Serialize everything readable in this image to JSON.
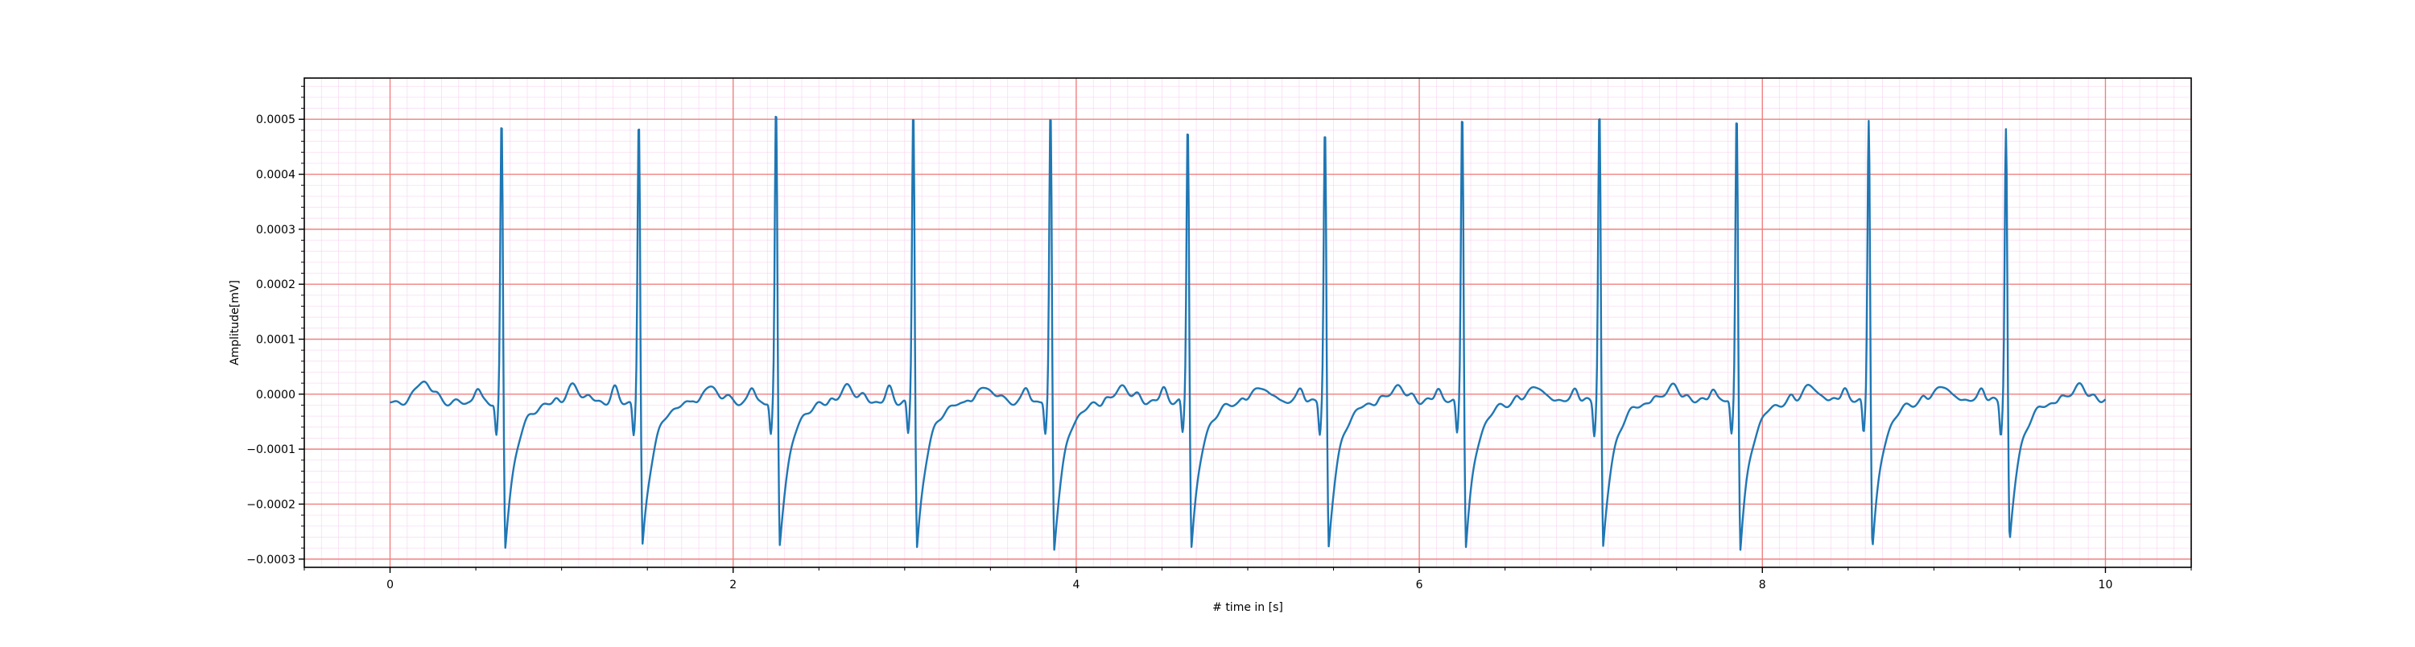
{
  "chart_data": {
    "type": "line",
    "title": "",
    "xlabel": "# time in [s]",
    "ylabel": "Amplitude[mV]",
    "xlim": [
      -0.5,
      10.5
    ],
    "ylim": [
      -0.000315,
      0.000575
    ],
    "x_ticks": [
      0,
      2,
      4,
      6,
      8,
      10
    ],
    "x_tick_labels": [
      "0",
      "2",
      "4",
      "6",
      "8",
      "10"
    ],
    "y_ticks": [
      -0.0003,
      -0.0002,
      -0.0001,
      0.0,
      0.0001,
      0.0002,
      0.0003,
      0.0004,
      0.0005
    ],
    "y_tick_labels": [
      "−0.0003",
      "−0.0002",
      "−0.0001",
      "0.0000",
      "0.0001",
      "0.0002",
      "0.0003",
      "0.0004",
      "0.0005"
    ],
    "grid": true,
    "grid_major_color": "#f08080",
    "grid_minor_color": "#f7c6ec",
    "line_color": "#1f77b4",
    "x_range": [
      0,
      10
    ],
    "sampling_interval_s": 0.004,
    "baseline_start": -1.5e-05,
    "baseline_end": -1.2e-05,
    "beats": [
      {
        "r_time": 0.65,
        "r_peak": 0.000515,
        "s_depth": -0.000268
      },
      {
        "r_time": 1.45,
        "r_peak": 0.000515,
        "s_depth": -0.000265
      },
      {
        "r_time": 2.25,
        "r_peak": 0.000535,
        "s_depth": -0.000262
      },
      {
        "r_time": 3.05,
        "r_peak": 0.000535,
        "s_depth": -0.000268
      },
      {
        "r_time": 3.85,
        "r_peak": 0.00053,
        "s_depth": -0.00027
      },
      {
        "r_time": 4.65,
        "r_peak": 0.00051,
        "s_depth": -0.000265
      },
      {
        "r_time": 5.45,
        "r_peak": 0.0005,
        "s_depth": -0.000265
      },
      {
        "r_time": 6.25,
        "r_peak": 0.000535,
        "s_depth": -0.000265
      },
      {
        "r_time": 7.05,
        "r_peak": 0.000535,
        "s_depth": -0.000268
      },
      {
        "r_time": 7.85,
        "r_peak": 0.00053,
        "s_depth": -0.000272
      },
      {
        "r_time": 8.62,
        "r_peak": 0.000515,
        "s_depth": -0.000268
      },
      {
        "r_time": 9.42,
        "r_peak": 0.000495,
        "s_depth": -0.000258
      }
    ],
    "p_wave_offset_s": -0.14,
    "p_wave_amplitude": 2.5e-05,
    "t_wave_offset_s": 0.42,
    "t_wave_amplitude": 3e-05,
    "q_offset_s": -0.03,
    "q_depth": -6e-05,
    "recovery_time_constant_s": 0.06,
    "first_t_wave_time": 0.19,
    "first_t_wave_amplitude": 4e-05
  }
}
